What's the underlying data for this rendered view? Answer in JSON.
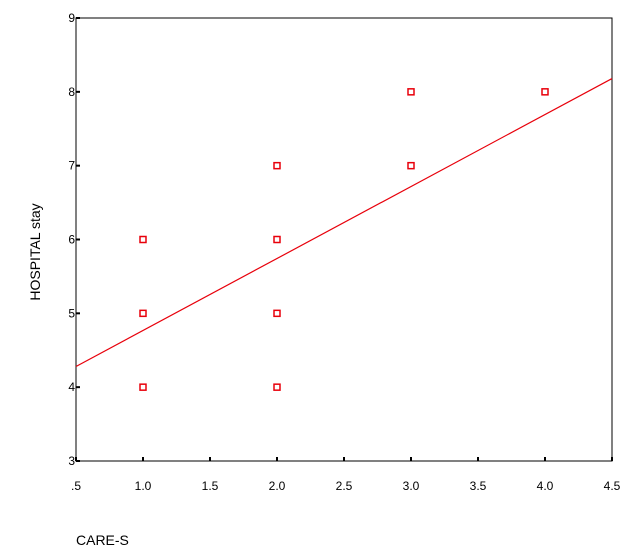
{
  "chart_data": {
    "type": "scatter",
    "title": "",
    "xlabel": "CARE-S",
    "ylabel": "HOSPITAL stay",
    "xlim": [
      0.5,
      4.5
    ],
    "ylim": [
      3,
      9
    ],
    "x_ticks": [
      0.5,
      1.0,
      1.5,
      2.0,
      2.5,
      3.0,
      3.5,
      4.0,
      4.5
    ],
    "x_tick_labels": [
      ".5",
      "1.0",
      "1.5",
      "2.0",
      "2.5",
      "3.0",
      "3.5",
      "4.0",
      "4.5"
    ],
    "y_ticks": [
      3,
      4,
      5,
      6,
      7,
      8,
      9
    ],
    "y_tick_labels": [
      "3",
      "4",
      "5",
      "6",
      "7",
      "8",
      "9"
    ],
    "grid": false,
    "legend": "none",
    "series": [
      {
        "marker": "hollow-square",
        "color": "#e8000b",
        "points": [
          {
            "x": 1,
            "y": 4
          },
          {
            "x": 1,
            "y": 5
          },
          {
            "x": 1,
            "y": 6
          },
          {
            "x": 2,
            "y": 4
          },
          {
            "x": 2,
            "y": 5
          },
          {
            "x": 2,
            "y": 6
          },
          {
            "x": 2,
            "y": 7
          },
          {
            "x": 3,
            "y": 7
          },
          {
            "x": 3,
            "y": 8
          },
          {
            "x": 4,
            "y": 8
          }
        ]
      }
    ],
    "fit_line": {
      "color": "#e8000b",
      "x": [
        0.5,
        4.5
      ],
      "y": [
        4.28,
        8.18
      ]
    }
  }
}
